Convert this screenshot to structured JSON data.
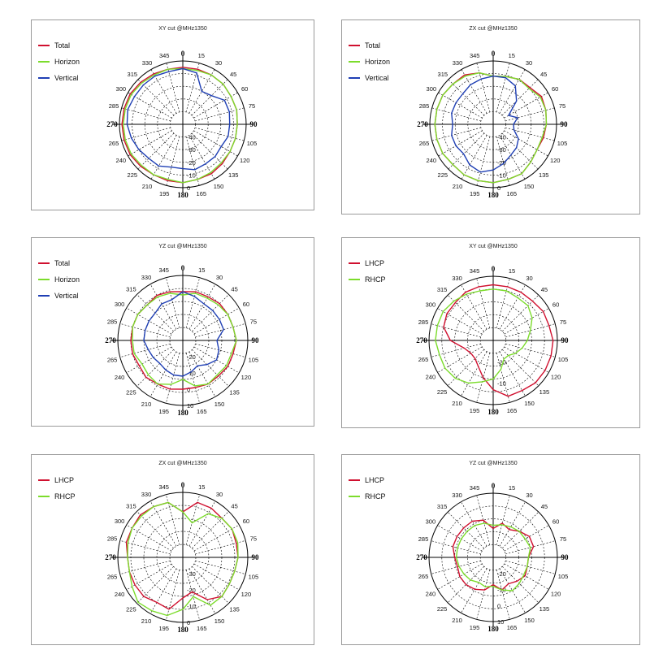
{
  "chart_data": [
    {
      "type": "polar-line",
      "title": "XY cut @MHz1350",
      "r_ticks": [
        "-40",
        "-30",
        "-20",
        "-10",
        "0"
      ],
      "angle_labels": [
        "0",
        "15",
        "30",
        "45",
        "60",
        "75",
        "90",
        "105",
        "120",
        "135",
        "150",
        "165",
        "180",
        "195",
        "210",
        "225",
        "240",
        "265",
        "270",
        "285",
        "300",
        "315",
        "330",
        "345"
      ],
      "series": [
        {
          "name": "Total",
          "color": "#d0102f",
          "values": [
            -5,
            -5,
            -5,
            -5,
            -6,
            -6,
            -7,
            -7,
            -7,
            -6,
            -5,
            -5,
            -4,
            -4,
            -4,
            -3,
            -2,
            -2,
            -2,
            -2,
            -2,
            -3,
            -4,
            -5
          ]
        },
        {
          "name": "Horizon",
          "color": "#7cdc2c",
          "values": [
            -6,
            -6,
            -5,
            -5,
            -6,
            -6,
            -7,
            -7,
            -7,
            -7,
            -6,
            -5,
            -4,
            -5,
            -4,
            -4,
            -3,
            -3,
            -3,
            -3,
            -3,
            -4,
            -5,
            -5
          ]
        },
        {
          "name": "Vertical",
          "color": "#1f3fb4",
          "values": [
            -6,
            -8,
            -20,
            -18,
            -12,
            -12,
            -13,
            -13,
            -15,
            -14,
            -14,
            -13,
            -15,
            -15,
            -12,
            -12,
            -10,
            -8,
            -6,
            -5,
            -6,
            -6,
            -6,
            -7
          ]
        }
      ]
    },
    {
      "type": "polar-line",
      "title": "ZX cut @MHz1350",
      "r_ticks": [
        "-40",
        "-30",
        "-20",
        "-10",
        "0"
      ],
      "angle_labels": [
        "0",
        "15",
        "30",
        "45",
        "60",
        "75",
        "90",
        "105",
        "120",
        "135",
        "150",
        "165",
        "180",
        "195",
        "210",
        "225",
        "240",
        "265",
        "270",
        "285",
        "300",
        "315",
        "330",
        "345"
      ],
      "series": [
        {
          "name": "Total",
          "color": "#d0102f",
          "values": [
            -12,
            -11,
            -9,
            -9,
            -6,
            -7,
            -8,
            -9,
            -10,
            -8,
            -5,
            -5,
            -4,
            -4,
            -4,
            -5,
            -4,
            -4,
            -4,
            -4,
            -4,
            -5,
            -5,
            -8
          ]
        },
        {
          "name": "Horizon",
          "color": "#7cdc2c",
          "values": [
            -12,
            -11,
            -9,
            -10,
            -7,
            -7,
            -8,
            -10,
            -10,
            -8,
            -5,
            -5,
            -4,
            -4,
            -4,
            -5,
            -4,
            -4,
            -4,
            -4,
            -4,
            -5,
            -6,
            -8
          ]
        },
        {
          "name": "Vertical",
          "color": "#1f3fb4",
          "values": [
            -12,
            -12,
            -15,
            -24,
            -36,
            -30,
            -34,
            -33,
            -27,
            -24,
            -22,
            -18,
            -14,
            -11,
            -13,
            -17,
            -16,
            -16,
            -18,
            -16,
            -16,
            -16,
            -14,
            -13
          ]
        }
      ]
    },
    {
      "type": "polar-line",
      "title": "YZ cut @MHz1350",
      "r_ticks": [
        "-20",
        "-10",
        "0",
        "10"
      ],
      "angle_labels": [
        "0",
        "15",
        "30",
        "45",
        "60",
        "75",
        "90",
        "105",
        "120",
        "135",
        "150",
        "165",
        "180",
        "195",
        "210",
        "225",
        "240",
        "265",
        "270",
        "285",
        "300",
        "315",
        "330",
        "345"
      ],
      "series": [
        {
          "name": "Total",
          "color": "#d0102f",
          "values": [
            0,
            1,
            1,
            2,
            2,
            2,
            3,
            2,
            2,
            1,
            1,
            0,
            0,
            1,
            1,
            2,
            1,
            2,
            2,
            2,
            2,
            1,
            2,
            1
          ]
        },
        {
          "name": "Horizon",
          "color": "#7cdc2c",
          "values": [
            -2,
            0,
            0,
            1,
            2,
            2,
            3,
            1,
            1,
            0,
            1,
            -1,
            -6,
            -2,
            1,
            0,
            -1,
            1,
            1,
            2,
            2,
            1,
            1,
            0
          ]
        },
        {
          "name": "Vertical",
          "color": "#1f3fb4",
          "values": [
            0,
            -2,
            -4,
            -4,
            -4,
            -4,
            -9,
            -7,
            -6,
            -9,
            -12,
            -10,
            -8,
            -8,
            -9,
            -10,
            -9,
            -8,
            -6,
            -6,
            -6,
            -6,
            -4,
            -4
          ]
        }
      ]
    },
    {
      "type": "polar-line",
      "title": "XY cut @MHz1350",
      "r_ticks": [
        "-20",
        "-10"
      ],
      "angle_labels": [
        "0",
        "15",
        "30",
        "45",
        "60",
        "75",
        "90",
        "105",
        "120",
        "135",
        "150",
        "165",
        "180",
        "195",
        "210",
        "225",
        "240",
        "265",
        "270",
        "285",
        "300",
        "315",
        "330",
        "345"
      ],
      "series": [
        {
          "name": "LHCP",
          "color": "#d0102f",
          "values": [
            -4,
            -4,
            -4,
            -4,
            -3,
            -3,
            -2,
            -2,
            -2,
            -2,
            -3,
            -3,
            -7,
            -12,
            -16,
            -18,
            -18,
            -16,
            -10,
            -6,
            -5,
            -5,
            -4,
            -4
          ]
        },
        {
          "name": "RHCP",
          "color": "#7cdc2c",
          "values": [
            -6,
            -6,
            -7,
            -7,
            -9,
            -12,
            -14,
            -16,
            -18,
            -20,
            -20,
            -16,
            -12,
            -10,
            -7,
            -5,
            -4,
            -4,
            -3,
            -3,
            -3,
            -4,
            -5,
            -6
          ]
        }
      ]
    },
    {
      "type": "polar-line",
      "title": "ZX cut @MHz1350",
      "r_ticks": [
        "-30",
        "-20",
        "-10",
        "0"
      ],
      "angle_labels": [
        "0",
        "15",
        "30",
        "45",
        "60",
        "75",
        "90",
        "105",
        "120",
        "135",
        "150",
        "165",
        "180",
        "195",
        "210",
        "225",
        "240",
        "265",
        "270",
        "285",
        "300",
        "315",
        "330",
        "345"
      ],
      "series": [
        {
          "name": "LHCP",
          "color": "#d0102f",
          "values": [
            -12,
            -5,
            -5,
            -6,
            -5,
            -6,
            -6,
            -7,
            -7,
            -6,
            -10,
            -18,
            -15,
            -7,
            -8,
            -6,
            -6,
            -6,
            -6,
            -4,
            -4,
            -3,
            -4,
            -5
          ]
        },
        {
          "name": "RHCP",
          "color": "#7cdc2c",
          "values": [
            -12,
            -18,
            -9,
            -6,
            -5,
            -5,
            -6,
            -7,
            -7,
            -6,
            -6,
            -15,
            -8,
            -3,
            -2,
            -1,
            -4,
            -6,
            -6,
            -5,
            -4,
            -4,
            -4,
            -5
          ]
        }
      ]
    },
    {
      "type": "polar-line",
      "title": "YZ cut @MHz1350",
      "r_ticks": [
        "-20",
        "-10",
        "0",
        "10"
      ],
      "angle_labels": [
        "0",
        "15",
        "30",
        "45",
        "60",
        "75",
        "90",
        "105",
        "120",
        "135",
        "150",
        "165",
        "180",
        "195",
        "210",
        "225",
        "240",
        "265",
        "270",
        "285",
        "300",
        "315",
        "330",
        "345"
      ],
      "series": [
        {
          "name": "LHCP",
          "color": "#d0102f",
          "values": [
            -12,
            -8,
            -10,
            -7,
            -4,
            -4,
            -8,
            -8,
            -7,
            -9,
            -11,
            -9,
            -13,
            -9,
            -7,
            -6,
            -6,
            -7,
            -6,
            -4,
            -4,
            -4,
            -4,
            -6
          ]
        },
        {
          "name": "RHCP",
          "color": "#7cdc2c",
          "values": [
            -10,
            -9,
            -8,
            -7,
            -7,
            -6,
            -8,
            -8,
            -8,
            -7,
            -6,
            -9,
            -12,
            -11,
            -12,
            -10,
            -9,
            -8,
            -7,
            -7,
            -7,
            -7,
            -7,
            -8
          ]
        }
      ]
    }
  ]
}
